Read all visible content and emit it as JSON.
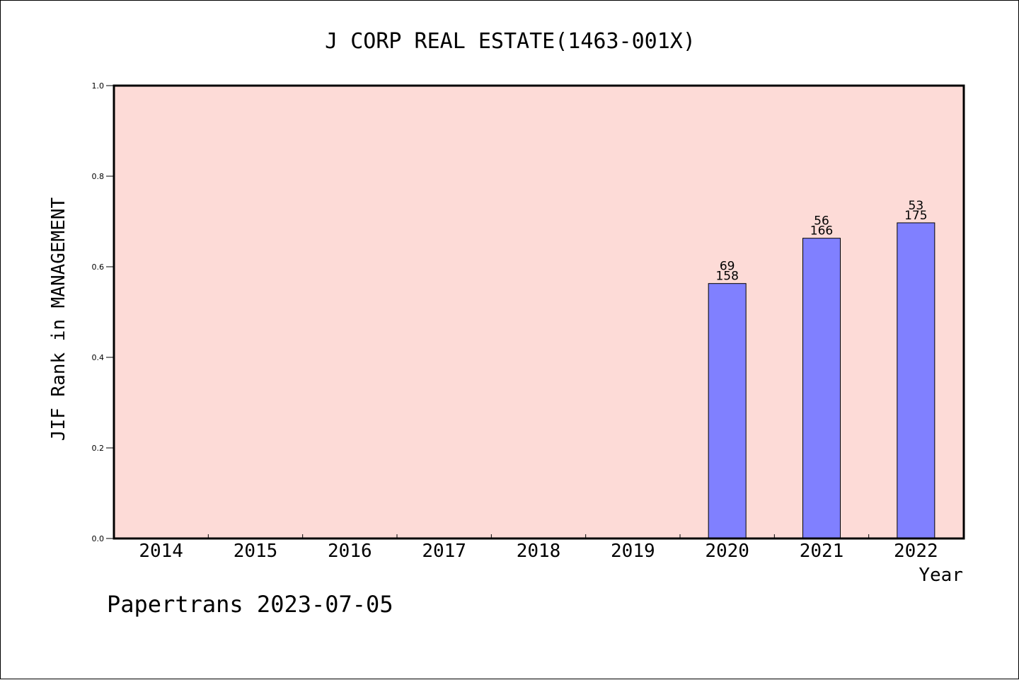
{
  "chart_data": {
    "type": "bar",
    "title": "J CORP REAL ESTATE(1463-001X)",
    "xlabel": "Year",
    "ylabel": "JIF Rank in MANAGEMENT",
    "ylim": [
      0,
      1.0
    ],
    "yticks": [
      "0.0",
      "0.2",
      "0.4",
      "0.6",
      "0.8",
      "1.0"
    ],
    "categories": [
      "2014",
      "2015",
      "2016",
      "2017",
      "2018",
      "2019",
      "2020",
      "2021",
      "2022"
    ],
    "values": [
      null,
      null,
      null,
      null,
      null,
      null,
      0.563,
      0.663,
      0.697
    ],
    "rank_labels": [
      "",
      "",
      "",
      "",
      "",
      "",
      "69",
      "56",
      "53"
    ],
    "total_labels": [
      "",
      "",
      "",
      "",
      "",
      "",
      "158",
      "166",
      "175"
    ],
    "grid": false,
    "colors": {
      "plot_background": "#fddbd7",
      "bar_fill": "#8080ff",
      "bar_stroke": "#000000"
    }
  },
  "footer": {
    "watermark": "Papertrans 2023-07-05"
  }
}
